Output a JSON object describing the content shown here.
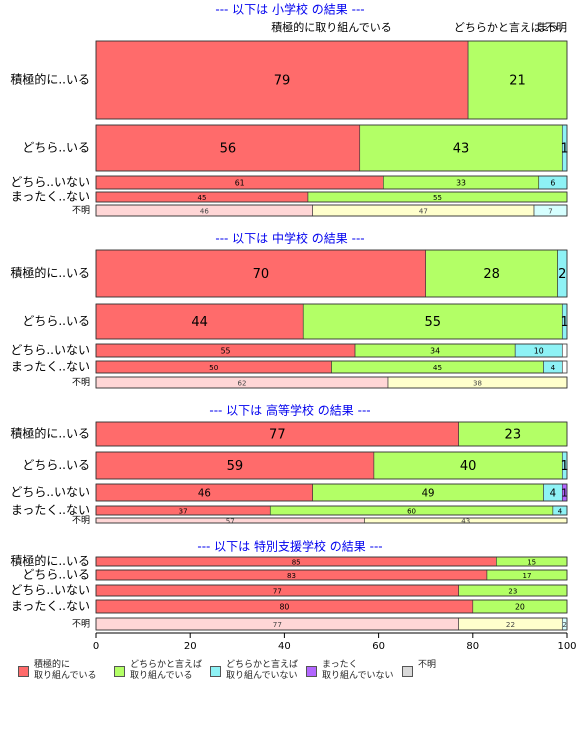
{
  "colors": {
    "strong": "#FF6B6B",
    "somewhat": "#B3FF66",
    "somewhat_not": "#8EF2F5",
    "not_at_all": "#B266FF",
    "unknown": "#D9D9D9",
    "strong_unknown_row": "#FFD6D6",
    "somewhat_unknown_row": "#FFFFCC",
    "somewhat_not_unknown_row": "#D6FFFF",
    "title": "#0000EE",
    "border": "#333333"
  },
  "header_labels": [
    {
      "text": "積極的に取り組んでいる",
      "at": 50
    },
    {
      "text": "どちらかと言えば…",
      "at": 97
    },
    {
      "text": "まっ.",
      "at": 99
    },
    {
      "text": "不明",
      "at": 100
    }
  ],
  "chart_data": {
    "type": "bar",
    "orientation": "horizontal-stacked-percent",
    "xlim": [
      0,
      100
    ],
    "xticks": [
      0,
      20,
      40,
      60,
      80,
      100
    ],
    "legend_position": "bottom",
    "legend": [
      {
        "key": "strong",
        "label": "積極的に\n取り組んでいる"
      },
      {
        "key": "somewhat",
        "label": "どちらかと言えば\n取り組んでいる"
      },
      {
        "key": "somewhat_not",
        "label": "どちらかと言えば\n取り組んでいない"
      },
      {
        "key": "not_at_all",
        "label": "まったく\n取り組んでいない"
      },
      {
        "key": "unknown",
        "label": "不明"
      }
    ],
    "panels": [
      {
        "title": "--- 以下は 小学校 の結果 ---",
        "rows": [
          {
            "label": "積極的に..いる",
            "values": [
              79,
              21,
              0,
              0,
              0
            ]
          },
          {
            "label": "どちら..いる",
            "values": [
              56,
              43,
              1,
              0,
              0
            ]
          },
          {
            "label": "どちら..いない",
            "values": [
              61,
              33,
              6,
              0,
              0
            ]
          },
          {
            "label": "まったく..ない",
            "values": [
              45,
              55,
              0,
              0,
              0
            ]
          },
          {
            "label": "不明",
            "values": [
              46,
              47,
              7,
              0,
              0
            ]
          }
        ]
      },
      {
        "title": "--- 以下は 中学校 の結果 ---",
        "rows": [
          {
            "label": "積極的に..いる",
            "values": [
              70,
              28,
              2,
              0,
              0
            ]
          },
          {
            "label": "どちら..いる",
            "values": [
              44,
              55,
              1,
              0,
              0
            ]
          },
          {
            "label": "どちら..いない",
            "values": [
              55,
              34,
              10,
              0,
              0
            ]
          },
          {
            "label": "まったく..ない",
            "values": [
              50,
              45,
              4,
              0,
              0
            ]
          },
          {
            "label": "不明",
            "values": [
              62,
              38,
              0,
              0,
              0
            ]
          }
        ]
      },
      {
        "title": "--- 以下は 高等学校 の結果 ---",
        "rows": [
          {
            "label": "積極的に..いる",
            "values": [
              77,
              23,
              0,
              0,
              0
            ]
          },
          {
            "label": "どちら..いる",
            "values": [
              59,
              40,
              1,
              0,
              0
            ]
          },
          {
            "label": "どちら..いない",
            "values": [
              46,
              49,
              4,
              1,
              0
            ]
          },
          {
            "label": "まったく..ない",
            "values": [
              37,
              60,
              4,
              0,
              0
            ]
          },
          {
            "label": "不明",
            "values": [
              57,
              43,
              0,
              0,
              0
            ]
          }
        ]
      },
      {
        "title": "--- 以下は 特別支援学校 の結果 ---",
        "rows": [
          {
            "label": "積極的に..いる",
            "values": [
              85,
              15,
              0,
              0,
              0
            ]
          },
          {
            "label": "どちら..いる",
            "values": [
              83,
              17,
              0,
              0,
              0
            ]
          },
          {
            "label": "どちら..いない",
            "values": [
              77,
              23,
              0,
              0,
              0
            ]
          },
          {
            "label": "まったく..ない",
            "values": [
              80,
              20,
              0,
              0,
              0
            ]
          },
          {
            "label": "不明",
            "values": [
              77,
              22,
              2,
              0,
              0
            ]
          }
        ]
      }
    ]
  }
}
